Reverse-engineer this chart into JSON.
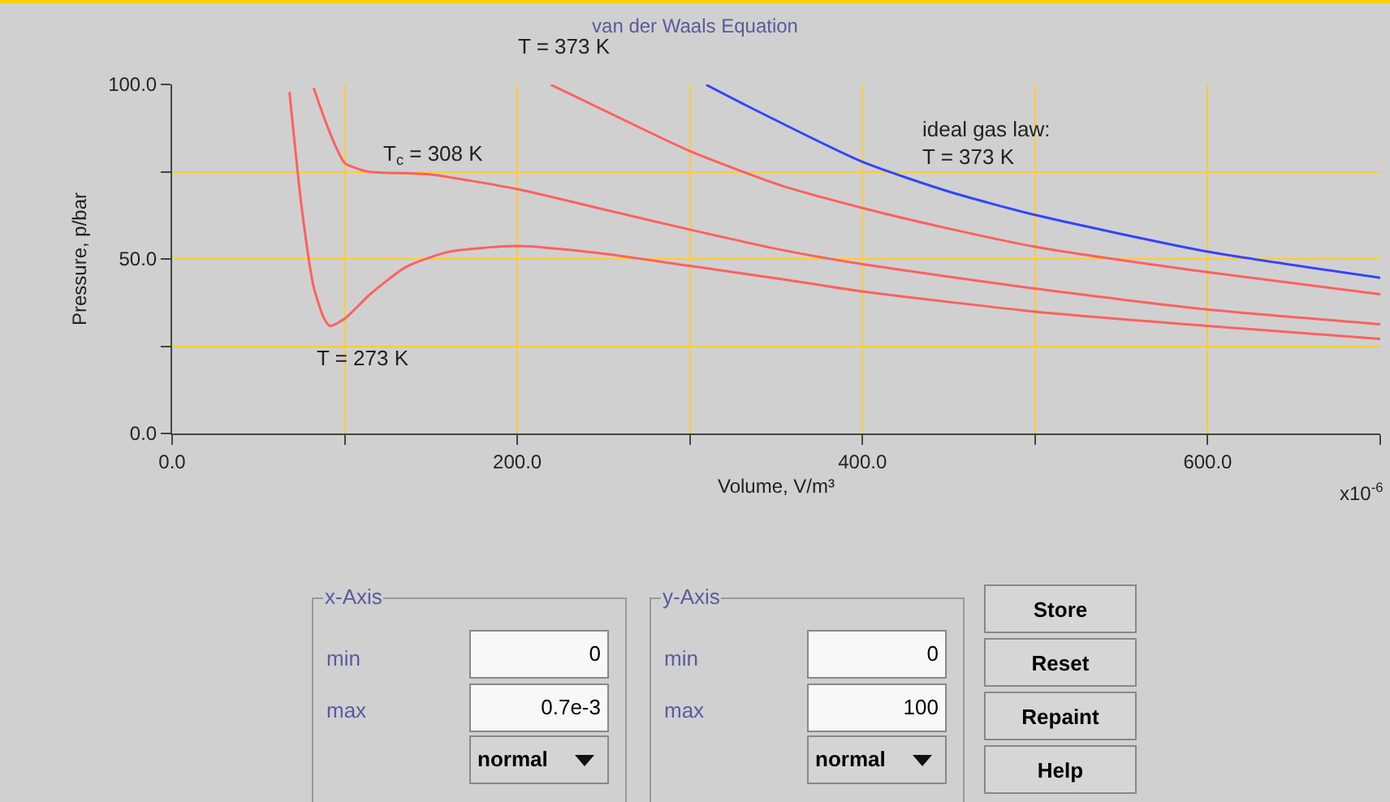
{
  "chart_data": {
    "type": "line",
    "title": "van der Waals Equation",
    "xlabel": "Volume, V/m³",
    "ylabel": "Pressure, p/bar",
    "xlim": [
      0,
      700
    ],
    "ylim": [
      0,
      100
    ],
    "xticks": [
      {
        "value": 0,
        "label": "0.0"
      },
      {
        "value": 100,
        "label": null
      },
      {
        "value": 200,
        "label": "200.0"
      },
      {
        "value": 300,
        "label": null
      },
      {
        "value": 400,
        "label": "400.0"
      },
      {
        "value": 500,
        "label": null
      },
      {
        "value": 600,
        "label": "600.0"
      },
      {
        "value": 700,
        "label": null
      }
    ],
    "yticks": [
      {
        "value": 0,
        "label": "0.0"
      },
      {
        "value": 25,
        "label": null
      },
      {
        "value": 50,
        "label": "50.0"
      },
      {
        "value": 75,
        "label": null
      },
      {
        "value": 100,
        "label": "100.0"
      }
    ],
    "grid": true,
    "marker": "none",
    "line_style": "solid",
    "series": [
      {
        "color": "#ff6060",
        "x": [
          68,
          75,
          82,
          88,
          91.5,
          100,
          115,
          135.5,
          160,
          200,
          250,
          300,
          352,
          400,
          500,
          600,
          700
        ],
        "values": [
          97.8,
          65,
          42,
          33,
          30.8,
          32.9,
          40,
          47.7,
          52,
          53.7,
          51.5,
          48,
          44.3,
          40.7,
          34.9,
          30.8,
          27.1
        ]
      },
      {
        "color": "#ff6060",
        "x": [
          82,
          88.4,
          95,
          100,
          113.5,
          148,
          200,
          250,
          300,
          352,
          400,
          500,
          600,
          700
        ],
        "values": [
          99,
          90,
          82,
          77.5,
          75,
          74.3,
          70,
          64.2,
          58.4,
          52.7,
          48.5,
          41.5,
          35.5,
          31.3
        ]
      },
      {
        "color": "#ff6060",
        "x": [
          219.5,
          261,
          300,
          352,
          400,
          450,
          500,
          600,
          700
        ],
        "values": [
          99.9,
          90,
          80.9,
          71.2,
          64.6,
          58.7,
          53.5,
          46.2,
          39.9
        ]
      },
      {
        "color": "#3344ff",
        "x": [
          309.5,
          333,
          400,
          450,
          500,
          600,
          700
        ],
        "values": [
          99.9,
          93.9,
          77.8,
          69.3,
          62.6,
          52.1,
          44.6
        ]
      }
    ],
    "annotations": [
      {
        "text": "T = 373 K",
        "x": 219.5,
        "y": 99.9
      },
      {
        "text": "T$_{c}$ = 308 K",
        "x": 113.5,
        "y": 75
      },
      {
        "text": "T = 273 K",
        "x": 91.5,
        "y": 30.8
      },
      {
        "text": "ideal gas law:\nT = 373 K",
        "x": 400,
        "y": 77.8
      },
      "x10$^{-6}$",
      "x-Axis",
      "min",
      "0",
      "max",
      "0.7e-3",
      "normal",
      "y-Axis",
      "min",
      "0",
      "max",
      "100",
      "normal",
      "Store",
      "Reset",
      "Repaint",
      "Help"
    ]
  }
}
